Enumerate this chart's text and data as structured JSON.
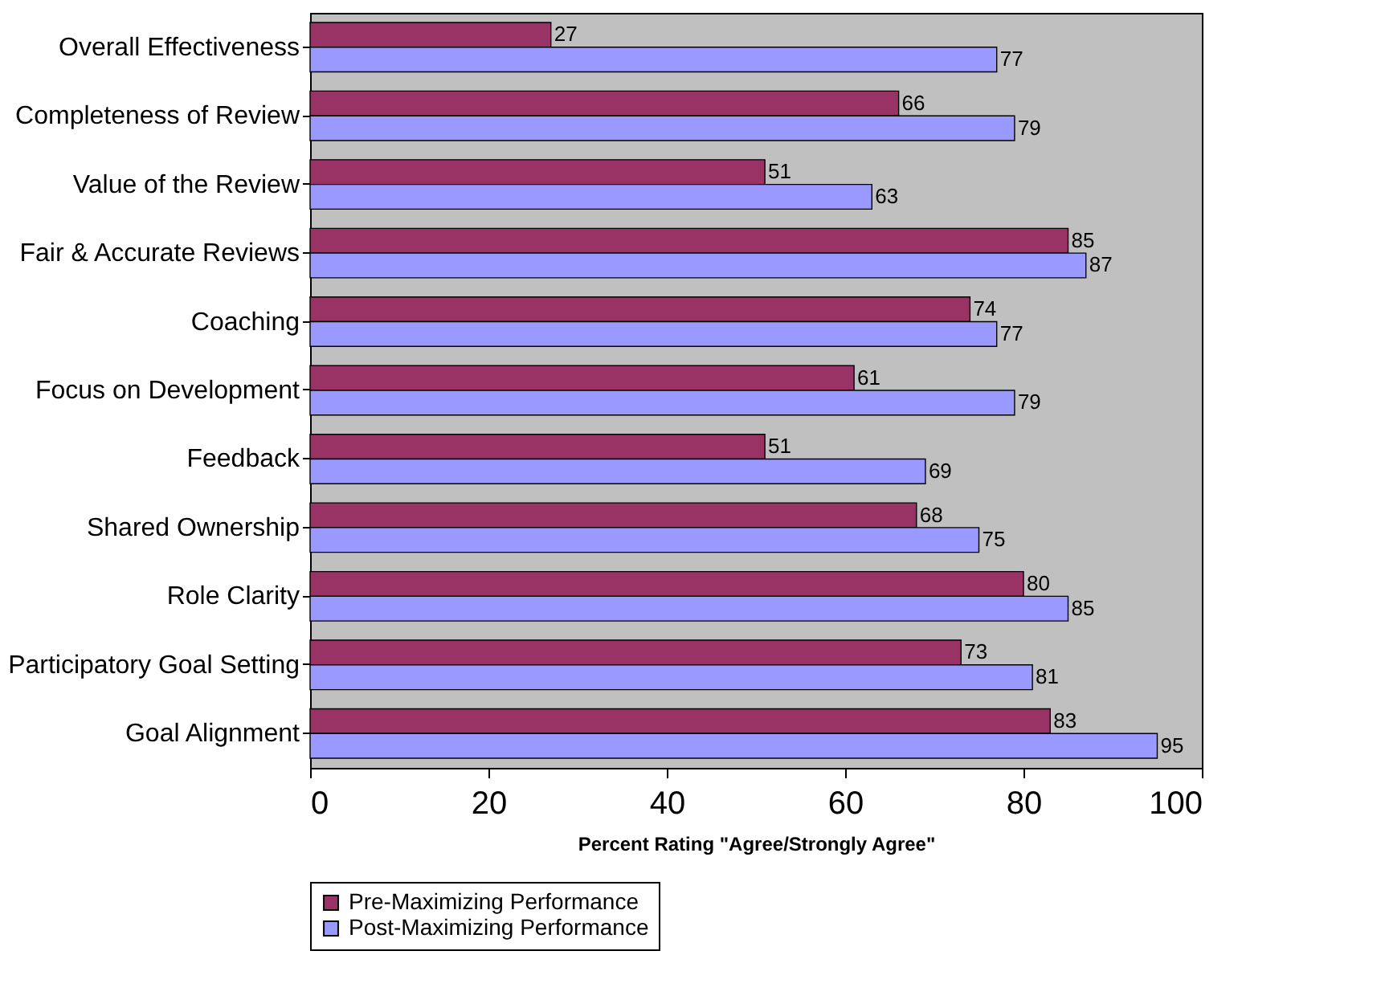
{
  "chart_data": {
    "type": "bar",
    "orientation": "horizontal",
    "xlabel": "Percent Rating \"Agree/Strongly Agree\"",
    "categories": [
      "Overall Effectiveness",
      "Completeness of Review",
      "Value of the Review",
      "Fair & Accurate Reviews",
      "Coaching",
      "Focus on Development",
      "Feedback",
      "Shared Ownership",
      "Role Clarity",
      "Participatory Goal Setting",
      "Goal Alignment"
    ],
    "series": [
      {
        "name": "Pre-Maximizing Performance",
        "color": "#993366",
        "values": [
          27,
          66,
          51,
          85,
          74,
          61,
          51,
          68,
          80,
          73,
          83
        ]
      },
      {
        "name": "Post-Maximizing Performance",
        "color": "#9999ff",
        "values": [
          77,
          79,
          63,
          87,
          77,
          79,
          69,
          75,
          85,
          81,
          95
        ]
      }
    ],
    "xlim": [
      0,
      100
    ],
    "xticks": [
      0,
      20,
      40,
      60,
      80,
      100
    ],
    "data_labels": true,
    "legend": "bottom",
    "grid": false
  }
}
